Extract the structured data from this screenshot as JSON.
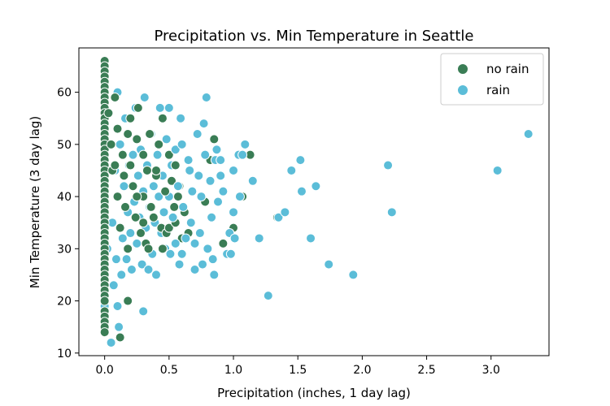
{
  "chart_data": {
    "type": "scatter",
    "title": "Precipitation vs. Min Temperature in Seattle",
    "xlabel": "Precipitation (inches, 1 day lag)",
    "ylabel": "Min Temperature (3 day lag)",
    "xlim": [
      -0.2,
      3.45
    ],
    "ylim": [
      9.5,
      68.5
    ],
    "xticks": [
      0.0,
      0.5,
      1.0,
      1.5,
      2.0,
      2.5,
      3.0
    ],
    "xtick_labels": [
      "0.0",
      "0.5",
      "1.0",
      "1.5",
      "2.0",
      "2.5",
      "3.0"
    ],
    "yticks": [
      10,
      20,
      30,
      40,
      50,
      60
    ],
    "ytick_labels": [
      "10",
      "20",
      "30",
      "40",
      "50",
      "60"
    ],
    "grid": false,
    "legend_position": "top-right",
    "series": [
      {
        "name": "no rain",
        "color": "#3a7d55",
        "points": [
          [
            0.0,
            66
          ],
          [
            0.0,
            65
          ],
          [
            0.0,
            64
          ],
          [
            0.0,
            63
          ],
          [
            0.0,
            62
          ],
          [
            0.0,
            61
          ],
          [
            0.0,
            60
          ],
          [
            0.0,
            59
          ],
          [
            0.0,
            58
          ],
          [
            0.0,
            57
          ],
          [
            0.0,
            56
          ],
          [
            0.0,
            55
          ],
          [
            0.0,
            54
          ],
          [
            0.0,
            53
          ],
          [
            0.0,
            52
          ],
          [
            0.0,
            51
          ],
          [
            0.0,
            50
          ],
          [
            0.0,
            49
          ],
          [
            0.0,
            48
          ],
          [
            0.0,
            47
          ],
          [
            0.0,
            46
          ],
          [
            0.0,
            45
          ],
          [
            0.0,
            44
          ],
          [
            0.0,
            43
          ],
          [
            0.0,
            42
          ],
          [
            0.0,
            41
          ],
          [
            0.0,
            40
          ],
          [
            0.0,
            39
          ],
          [
            0.0,
            38
          ],
          [
            0.0,
            37
          ],
          [
            0.0,
            36
          ],
          [
            0.0,
            35
          ],
          [
            0.0,
            34
          ],
          [
            0.0,
            33
          ],
          [
            0.0,
            32
          ],
          [
            0.0,
            31
          ],
          [
            0.0,
            30
          ],
          [
            0.0,
            29
          ],
          [
            0.0,
            28
          ],
          [
            0.0,
            27
          ],
          [
            0.0,
            26
          ],
          [
            0.0,
            25
          ],
          [
            0.0,
            24
          ],
          [
            0.0,
            23
          ],
          [
            0.0,
            22
          ],
          [
            0.0,
            21
          ],
          [
            0.0,
            20
          ],
          [
            0.0,
            18
          ],
          [
            0.0,
            17
          ],
          [
            0.0,
            16
          ],
          [
            0.0,
            15
          ],
          [
            0.0,
            14
          ],
          [
            0.03,
            56
          ],
          [
            0.05,
            50
          ],
          [
            0.06,
            45
          ],
          [
            0.08,
            59
          ],
          [
            0.1,
            53
          ],
          [
            0.1,
            40
          ],
          [
            0.12,
            34
          ],
          [
            0.12,
            13
          ],
          [
            0.14,
            48
          ],
          [
            0.15,
            44
          ],
          [
            0.16,
            38
          ],
          [
            0.18,
            30
          ],
          [
            0.18,
            20
          ],
          [
            0.2,
            55
          ],
          [
            0.2,
            46
          ],
          [
            0.22,
            42
          ],
          [
            0.24,
            36
          ],
          [
            0.25,
            51
          ],
          [
            0.26,
            57
          ],
          [
            0.28,
            33
          ],
          [
            0.3,
            48
          ],
          [
            0.3,
            40
          ],
          [
            0.32,
            31
          ],
          [
            0.33,
            45
          ],
          [
            0.35,
            52
          ],
          [
            0.36,
            38
          ],
          [
            0.38,
            36
          ],
          [
            0.4,
            44
          ],
          [
            0.42,
            50
          ],
          [
            0.44,
            34
          ],
          [
            0.45,
            55
          ],
          [
            0.47,
            41
          ],
          [
            0.48,
            33
          ],
          [
            0.5,
            48
          ],
          [
            0.52,
            43
          ],
          [
            0.54,
            38
          ],
          [
            0.55,
            46
          ],
          [
            0.57,
            40
          ],
          [
            0.6,
            32
          ],
          [
            0.62,
            37
          ],
          [
            0.65,
            33
          ],
          [
            0.3,
            35
          ],
          [
            0.34,
            30
          ],
          [
            0.5,
            34
          ],
          [
            0.55,
            35
          ],
          [
            0.4,
            45
          ],
          [
            0.78,
            39
          ],
          [
            0.82,
            47
          ],
          [
            0.85,
            51
          ],
          [
            0.92,
            31
          ],
          [
            1.0,
            34
          ],
          [
            1.07,
            40
          ],
          [
            1.13,
            48
          ],
          [
            1.34,
            36
          ],
          [
            0.58,
            42
          ],
          [
            0.45,
            30
          ],
          [
            0.25,
            40
          ],
          [
            0.18,
            52
          ],
          [
            0.08,
            46
          ]
        ]
      },
      {
        "name": "rain",
        "color": "#5bbdd8",
        "points": [
          [
            0.0,
            58
          ],
          [
            0.0,
            53
          ],
          [
            0.0,
            42
          ],
          [
            0.0,
            38
          ],
          [
            0.0,
            32
          ],
          [
            0.0,
            28
          ],
          [
            0.0,
            21
          ],
          [
            0.0,
            19
          ],
          [
            0.0,
            17
          ],
          [
            0.02,
            30
          ],
          [
            0.05,
            12
          ],
          [
            0.06,
            35
          ],
          [
            0.07,
            23
          ],
          [
            0.08,
            45
          ],
          [
            0.09,
            28
          ],
          [
            0.1,
            60
          ],
          [
            0.1,
            19
          ],
          [
            0.11,
            15
          ],
          [
            0.12,
            50
          ],
          [
            0.13,
            25
          ],
          [
            0.14,
            32
          ],
          [
            0.15,
            42
          ],
          [
            0.16,
            55
          ],
          [
            0.17,
            28
          ],
          [
            0.18,
            37
          ],
          [
            0.19,
            46
          ],
          [
            0.2,
            33
          ],
          [
            0.21,
            26
          ],
          [
            0.22,
            48
          ],
          [
            0.23,
            39
          ],
          [
            0.24,
            57
          ],
          [
            0.25,
            31
          ],
          [
            0.26,
            44
          ],
          [
            0.27,
            36
          ],
          [
            0.28,
            49
          ],
          [
            0.29,
            27
          ],
          [
            0.3,
            18
          ],
          [
            0.3,
            41
          ],
          [
            0.31,
            59
          ],
          [
            0.32,
            34
          ],
          [
            0.33,
            46
          ],
          [
            0.34,
            26
          ],
          [
            0.35,
            38
          ],
          [
            0.36,
            52
          ],
          [
            0.37,
            29
          ],
          [
            0.38,
            42
          ],
          [
            0.39,
            35
          ],
          [
            0.4,
            25
          ],
          [
            0.41,
            48
          ],
          [
            0.42,
            40
          ],
          [
            0.43,
            57
          ],
          [
            0.44,
            33
          ],
          [
            0.45,
            44
          ],
          [
            0.46,
            37
          ],
          [
            0.47,
            30
          ],
          [
            0.48,
            51
          ],
          [
            0.5,
            57
          ],
          [
            0.5,
            40
          ],
          [
            0.51,
            29
          ],
          [
            0.52,
            46
          ],
          [
            0.53,
            36
          ],
          [
            0.55,
            49
          ],
          [
            0.55,
            31
          ],
          [
            0.57,
            42
          ],
          [
            0.58,
            27
          ],
          [
            0.59,
            55
          ],
          [
            0.6,
            50
          ],
          [
            0.6,
            29
          ],
          [
            0.61,
            38
          ],
          [
            0.63,
            32
          ],
          [
            0.65,
            47
          ],
          [
            0.66,
            45
          ],
          [
            0.67,
            35
          ],
          [
            0.68,
            41
          ],
          [
            0.7,
            31
          ],
          [
            0.7,
            26
          ],
          [
            0.72,
            52
          ],
          [
            0.73,
            44
          ],
          [
            0.74,
            33
          ],
          [
            0.75,
            40
          ],
          [
            0.76,
            27
          ],
          [
            0.77,
            54
          ],
          [
            0.78,
            48
          ],
          [
            0.79,
            59
          ],
          [
            0.8,
            30
          ],
          [
            0.82,
            43
          ],
          [
            0.83,
            36
          ],
          [
            0.84,
            28
          ],
          [
            0.85,
            25
          ],
          [
            0.86,
            47
          ],
          [
            0.87,
            49
          ],
          [
            0.88,
            39
          ],
          [
            0.9,
            47
          ],
          [
            0.9,
            44
          ],
          [
            0.92,
            41
          ],
          [
            0.95,
            29
          ],
          [
            0.97,
            33
          ],
          [
            0.98,
            29
          ],
          [
            1.0,
            45
          ],
          [
            1.0,
            37
          ],
          [
            1.01,
            32
          ],
          [
            1.04,
            48
          ],
          [
            1.05,
            40
          ],
          [
            1.07,
            48
          ],
          [
            1.09,
            50
          ],
          [
            1.15,
            43
          ],
          [
            1.2,
            32
          ],
          [
            1.27,
            21
          ],
          [
            1.35,
            36
          ],
          [
            1.4,
            37
          ],
          [
            1.45,
            45
          ],
          [
            1.52,
            47
          ],
          [
            1.53,
            41
          ],
          [
            1.6,
            32
          ],
          [
            1.64,
            42
          ],
          [
            1.74,
            27
          ],
          [
            1.93,
            25
          ],
          [
            2.2,
            46
          ],
          [
            2.23,
            37
          ],
          [
            3.05,
            45
          ],
          [
            3.29,
            52
          ]
        ]
      }
    ]
  }
}
